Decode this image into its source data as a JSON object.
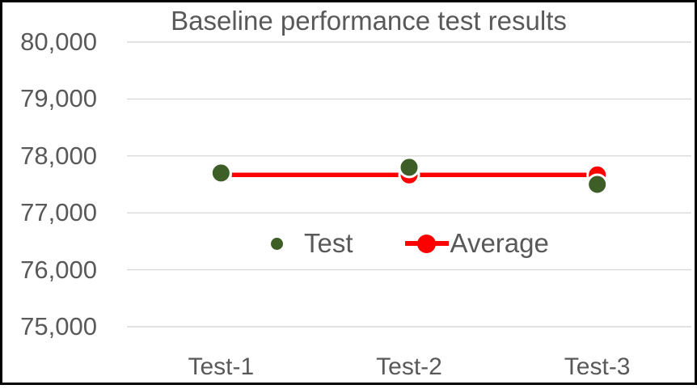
{
  "page": {
    "background": "#FFFFFF",
    "border_color": "#000000"
  },
  "colors": {
    "test_series": "#3E5E28",
    "average_series": "#FF0000",
    "gridline": "#D9D9D9",
    "axis_text": "#595959",
    "marker_outline": "#FFFFFF"
  },
  "legend": {
    "position": "inside-plot-center",
    "items": [
      {
        "label": "Test",
        "marker": "dot"
      },
      {
        "label": "Average",
        "marker": "line-with-dot"
      }
    ]
  },
  "chart_data": {
    "type": "line",
    "title": "Baseline performance test results",
    "categories": [
      "Test-1",
      "Test-2",
      "Test-3"
    ],
    "series": [
      {
        "name": "Test",
        "type": "scatter",
        "color": "#3E5E28",
        "values": [
          77700,
          77800,
          77500
        ]
      },
      {
        "name": "Average",
        "type": "line",
        "color": "#FF0000",
        "values": [
          77666.67,
          77666.67,
          77666.67
        ]
      }
    ],
    "xlabel": "",
    "ylabel": "",
    "ylim": [
      75000,
      80000
    ],
    "ytick_step": 1000,
    "ytick_labels": [
      "75,000",
      "76,000",
      "77,000",
      "78,000",
      "79,000",
      "80,000"
    ],
    "grid": true,
    "legend_position": "inside-plot-center"
  }
}
